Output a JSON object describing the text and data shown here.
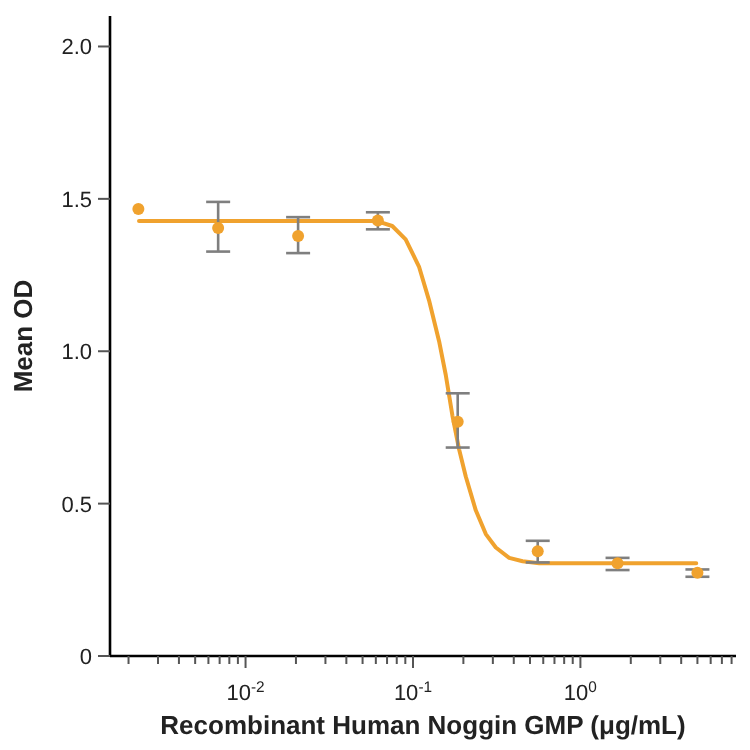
{
  "chart_data": {
    "type": "scatter",
    "xlabel": "Recombinant Human Noggin GMP (μg/mL)",
    "ylabel": "Mean OD",
    "log": "x",
    "grid": false,
    "marker": "circle",
    "xlim": [
      0.00155,
      8.5
    ],
    "xticks": [
      {
        "value": 0.002,
        "label": null
      },
      {
        "value": 0.003,
        "label": null
      },
      {
        "value": 0.004,
        "label": null
      },
      {
        "value": 0.005,
        "label": null
      },
      {
        "value": 0.006,
        "label": null
      },
      {
        "value": 0.007,
        "label": null
      },
      {
        "value": 0.008,
        "label": null
      },
      {
        "value": 0.009,
        "label": null
      },
      {
        "value": 0.01,
        "label": "10$^{-2}$"
      },
      {
        "value": 0.02,
        "label": null
      },
      {
        "value": 0.03,
        "label": null
      },
      {
        "value": 0.04,
        "label": null
      },
      {
        "value": 0.05,
        "label": null
      },
      {
        "value": 0.06,
        "label": null
      },
      {
        "value": 0.07,
        "label": null
      },
      {
        "value": 0.08,
        "label": null
      },
      {
        "value": 0.09,
        "label": null
      },
      {
        "value": 0.1,
        "label": "10$^{-1}$"
      },
      {
        "value": 0.2,
        "label": null
      },
      {
        "value": 0.3,
        "label": null
      },
      {
        "value": 0.4,
        "label": null
      },
      {
        "value": 0.5,
        "label": null
      },
      {
        "value": 0.6,
        "label": null
      },
      {
        "value": 0.7,
        "label": null
      },
      {
        "value": 0.8,
        "label": null
      },
      {
        "value": 0.9,
        "label": null
      },
      {
        "value": 1,
        "label": "10$^{0}$"
      },
      {
        "value": 2,
        "label": null
      },
      {
        "value": 3,
        "label": null
      },
      {
        "value": 4,
        "label": null
      },
      {
        "value": 5,
        "label": null
      },
      {
        "value": 6,
        "label": null
      },
      {
        "value": 7,
        "label": null
      },
      {
        "value": 8,
        "label": null
      }
    ],
    "ylim": [
      0,
      2.1
    ],
    "yticks": [
      0,
      {
        "value": 0.5,
        "label": "0.5"
      },
      {
        "value": 1,
        "label": "1.0"
      },
      {
        "value": 1.5,
        "label": "1.5"
      },
      {
        "value": 2,
        "label": "2.0"
      }
    ],
    "series": [
      {
        "type": "line",
        "color": "#f0a22e",
        "marker": "none",
        "x": [
          0.00231,
          0.0609,
          0.0752,
          0.0904,
          0.1086,
          0.1247,
          0.1432,
          0.157,
          0.172,
          0.1886,
          0.2067,
          0.2372,
          0.2723,
          0.3126,
          0.3757,
          0.4516,
          0.568,
          4.92
        ],
        "values": [
          1.427,
          1.427,
          1.411,
          1.367,
          1.278,
          1.167,
          1.033,
          0.922,
          0.789,
          0.678,
          0.589,
          0.478,
          0.4,
          0.356,
          0.322,
          0.311,
          0.304,
          0.304
        ]
      },
      {
        "color": "#f0a22e",
        "x": [
          0.00229,
          0.00686,
          0.0206,
          0.0617,
          0.185,
          0.556,
          1.667,
          5
        ],
        "values": [
          1.467,
          1.404,
          1.378,
          1.429,
          0.769,
          0.344,
          0.304,
          0.273
        ],
        "errors": [
          null,
          [
            1.327,
            1.49
          ],
          [
            1.322,
            1.44
          ],
          [
            1.4,
            1.456
          ],
          [
            0.684,
            0.862
          ],
          [
            0.307,
            0.378
          ],
          [
            0.282,
            0.322
          ],
          [
            0.26,
            0.284
          ]
        ]
      }
    ]
  }
}
